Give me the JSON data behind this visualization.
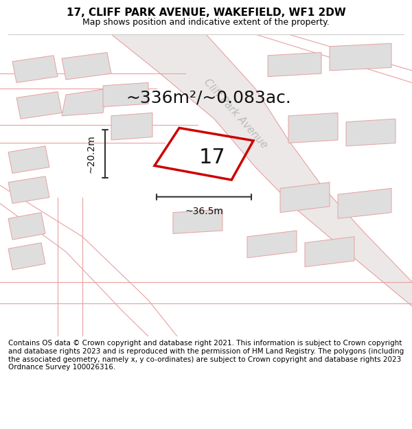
{
  "title": "17, CLIFF PARK AVENUE, WAKEFIELD, WF1 2DW",
  "subtitle": "Map shows position and indicative extent of the property.",
  "footer": "Contains OS data © Crown copyright and database right 2021. This information is subject to Crown copyright and database rights 2023 and is reproduced with the permission of HM Land Registry. The polygons (including the associated geometry, namely x, y co-ordinates) are subject to Crown copyright and database rights 2023 Ordnance Survey 100026316.",
  "area_label": "~336m²/~0.083ac.",
  "number_label": "17",
  "width_label": "~36.5m",
  "height_label": "~20.2m",
  "road_label": "Cliff Park Avenue",
  "bg_color": "#ffffff",
  "map_bg": "#f0f0f0",
  "building_fill": "#dedede",
  "road_line_color": "#e8a0a0",
  "boundary_line_color": "#cc0000",
  "dim_line_color": "#333333",
  "road_label_color": "#bbbbbb",
  "title_fontsize": 11,
  "subtitle_fontsize": 9,
  "footer_fontsize": 7.5,
  "area_label_fontsize": 18,
  "number_label_fontsize": 22,
  "dim_label_fontsize": 10,
  "road_label_fontsize": 11,
  "figsize": [
    6.0,
    6.25
  ],
  "dpi": 100
}
